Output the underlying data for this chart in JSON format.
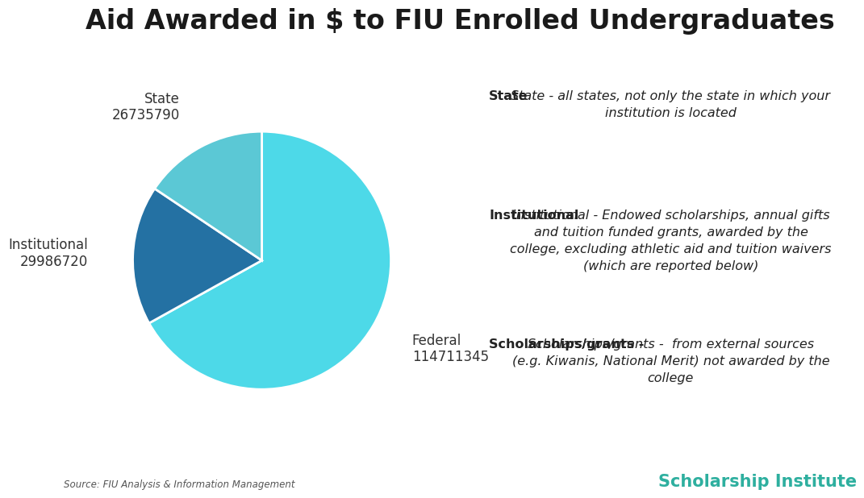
{
  "title": "Aid Awarded in $ to FIU Enrolled Undergraduates",
  "title_fontsize": 24,
  "slices": [
    {
      "label": "Federal",
      "value": 114711345,
      "color": "#4DD9E8"
    },
    {
      "label": "Institutional",
      "value": 29986720,
      "color": "#2471A3"
    },
    {
      "label": "State",
      "value": 26735790,
      "color": "#5BC8D5"
    }
  ],
  "label_fontsize": 12,
  "annotations": [
    {
      "bold_text": "State",
      "rest_text": " - all states, not only the state in which your\ninstitution is located"
    },
    {
      "bold_text": "Institutional",
      "rest_text": " - Endowed scholarships, annual gifts\nand tuition funded grants, awarded by the\ncollege, excluding athletic aid and tuition waivers\n(which are reported below)"
    },
    {
      "bold_text": "Scholarships/grants - ",
      "rest_text": " from external sources\n(e.g. Kiwanis, National Merit) not awarded by the\ncollege"
    }
  ],
  "source_text": "Source: FIU Analysis & Information Management",
  "brand_text": "Scholarship Institute",
  "brand_color": "#2EAF9F",
  "background_color": "#ffffff",
  "annotation_fontsize": 11.5
}
